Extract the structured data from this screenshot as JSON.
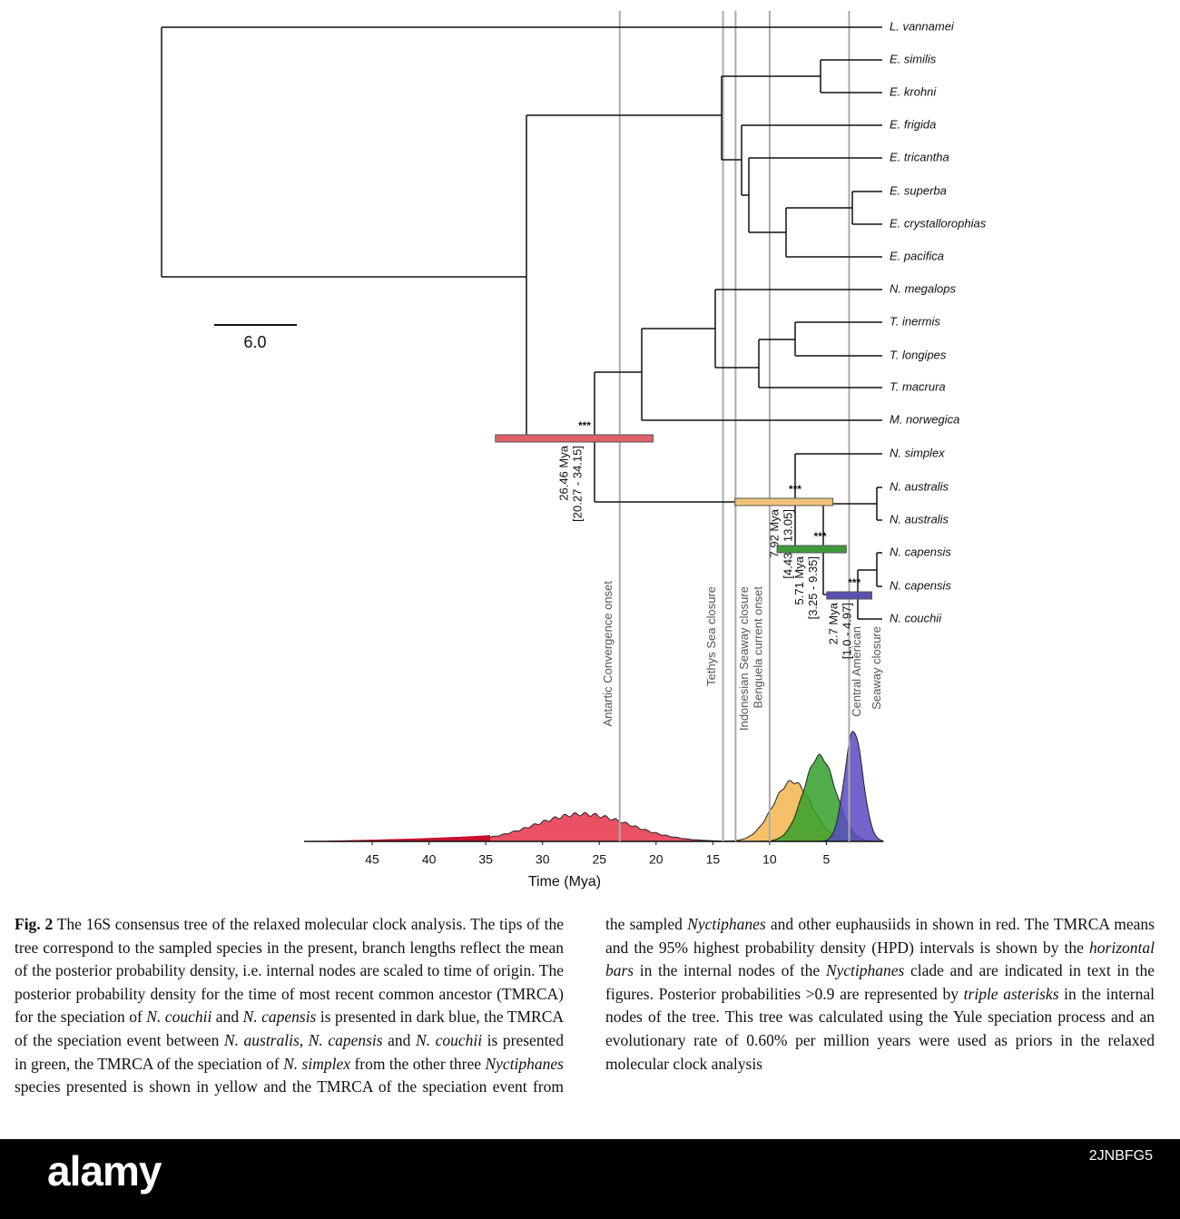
{
  "figure": {
    "tips": [
      "L. vannamei",
      "E. similis",
      "E. krohni",
      "E. frigida",
      "E. tricantha",
      "E. superba",
      "E. crystallorophias",
      "E. pacifica",
      "N. megalops",
      "T. inermis",
      "T. longipes",
      "T. macrura",
      "M. norwegica",
      "N. simplex",
      "N. australis",
      "N. australis",
      "N. capensis",
      "N. capensis",
      "N. couchii"
    ],
    "scale_bar": "6.0",
    "nodes": [
      {
        "support": "***",
        "mean": 26.46,
        "mean_label": "26.46 Mya",
        "hpd": [
          20.27,
          34.15
        ],
        "hpd_label": "[20.27 - 34.15]",
        "color": "#e0606a"
      },
      {
        "support": "***",
        "mean": 7.92,
        "mean_label": "7.92 Mya",
        "hpd": [
          4.43,
          13.05
        ],
        "hpd_label": "[4.43 - 13.05]",
        "color": "#f2c27a"
      },
      {
        "support": "***",
        "mean": 5.71,
        "mean_label": "5.71 Mya",
        "hpd": [
          3.25,
          9.35
        ],
        "hpd_label": "[3.25 - 9.35]",
        "color": "#3f9a3a"
      },
      {
        "support": "***",
        "mean": 2.7,
        "mean_label": "2.7 Mya",
        "hpd": [
          1.0,
          4.97
        ],
        "hpd_label": "[1.0 - 4.97]",
        "color": "#5a4fb0"
      }
    ],
    "events": [
      {
        "mya": 23.2,
        "label": [
          "Antartic Convergence onset"
        ]
      },
      {
        "mya": 14.1,
        "label": [
          "Tethys Sea closure"
        ]
      },
      {
        "mya": 13.0,
        "label": [
          "Indonesian  Seaway  closure"
        ]
      },
      {
        "mya": 10.0,
        "label": [
          "Benguela current onset"
        ]
      },
      {
        "mya": 3.0,
        "label": [
          "Central American",
          "Seaway closure"
        ]
      }
    ],
    "xticks": [
      45,
      40,
      35,
      30,
      25,
      20,
      15,
      10,
      5
    ],
    "xlim": [
      51,
      0
    ],
    "xlabel": "Time (Mya)"
  },
  "caption": {
    "label": "Fig. 2",
    "segments": [
      " The 16S consensus tree of the relaxed molecular clock analysis. The tips of the tree correspond to the sampled species in the present, branch lengths reflect the mean of the posterior probability density, i.e. internal nodes are scaled to time of origin. The posterior probability density for the time of most recent common ancestor (TMRCA) for the speciation of ",
      "N. couchii",
      " and ",
      "N. capensis",
      " is presented in dark blue, the TMRCA of the speciation event between ",
      "N. australis",
      ", ",
      "N. capensis",
      " and ",
      "N. couchii",
      " is presented in green, the TMRCA of the speciation of ",
      "N. simplex",
      " from the other three ",
      "Nyctiphanes",
      " species presented is shown in yellow and the TMRCA of the speciation event from the sampled ",
      "Nyctiphanes",
      " and other euphausiids in shown in red. The TMRCA means and the 95% highest probability density (HPD) intervals is shown by the ",
      "horizontal bars",
      " in the internal nodes of the ",
      "Nyctiphanes",
      " clade and are indicated in text in the figures. Posterior probabilities >0.9 are represented by ",
      "triple asterisks",
      " in the internal nodes of the tree. This tree was calculated using the Yule speciation process and an evolutionary rate of 0.60% per million years were used as priors in the relaxed molecular clock analysis"
    ]
  },
  "watermark": {
    "brand": "alamy",
    "id": "2JNBFG5"
  }
}
